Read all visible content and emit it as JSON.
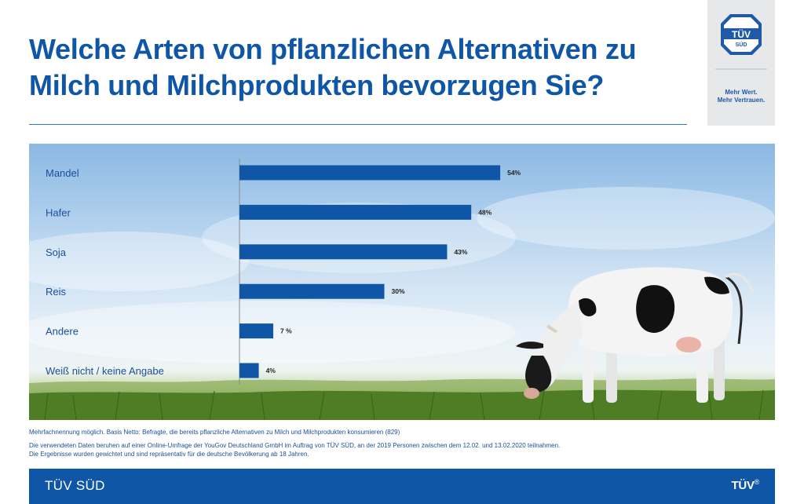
{
  "title": "Welche Arten von pflanzlichen Alternativen zu Milch und Milchprodukten bevorzugen Sie?",
  "logo": {
    "mark_line1": "TÜV",
    "mark_line2": "SÜD",
    "slogan_line1": "Mehr Wert.",
    "slogan_line2": "Mehr Vertrauen."
  },
  "chart_data": {
    "type": "bar",
    "orientation": "horizontal",
    "categories": [
      "Mandel",
      "Hafer",
      "Soja",
      "Reis",
      "Andere",
      "Weiß nicht / keine Angabe"
    ],
    "values": [
      54,
      48,
      43,
      30,
      7,
      4
    ],
    "value_labels": [
      "54%",
      "48%",
      "43%",
      "30%",
      "7 %",
      "4%"
    ],
    "unit": "%",
    "xlim": [
      0,
      100
    ],
    "grid": false,
    "legend": "none",
    "bar_color": "#0f56a6"
  },
  "footnotes": {
    "line1": "Mehrfachnennung möglich. Basis Netto: Befragte, die bereits pflanzliche Alternativen zu Milch und Milchprodukten konsumieren (829)",
    "line2": "Die verwendeten Daten beruhen auf einer Online-Umfrage der YouGov Deutschland GmbH im Auftrag von TÜV SÜD, an der 2019 Personen zwischen dem 12.02. und 13.02.2020 teilnahmen.",
    "line3": "Die Ergebnisse wurden gewichtet und sind repräsentativ für die deutsche Bevölkerung ab 18 Jahren."
  },
  "footer": {
    "left": "TÜV SÜD",
    "right": "TÜV",
    "right_mark": "®"
  },
  "colors": {
    "brand_blue": "#0f56a6",
    "label_blue": "#1a4f99"
  }
}
